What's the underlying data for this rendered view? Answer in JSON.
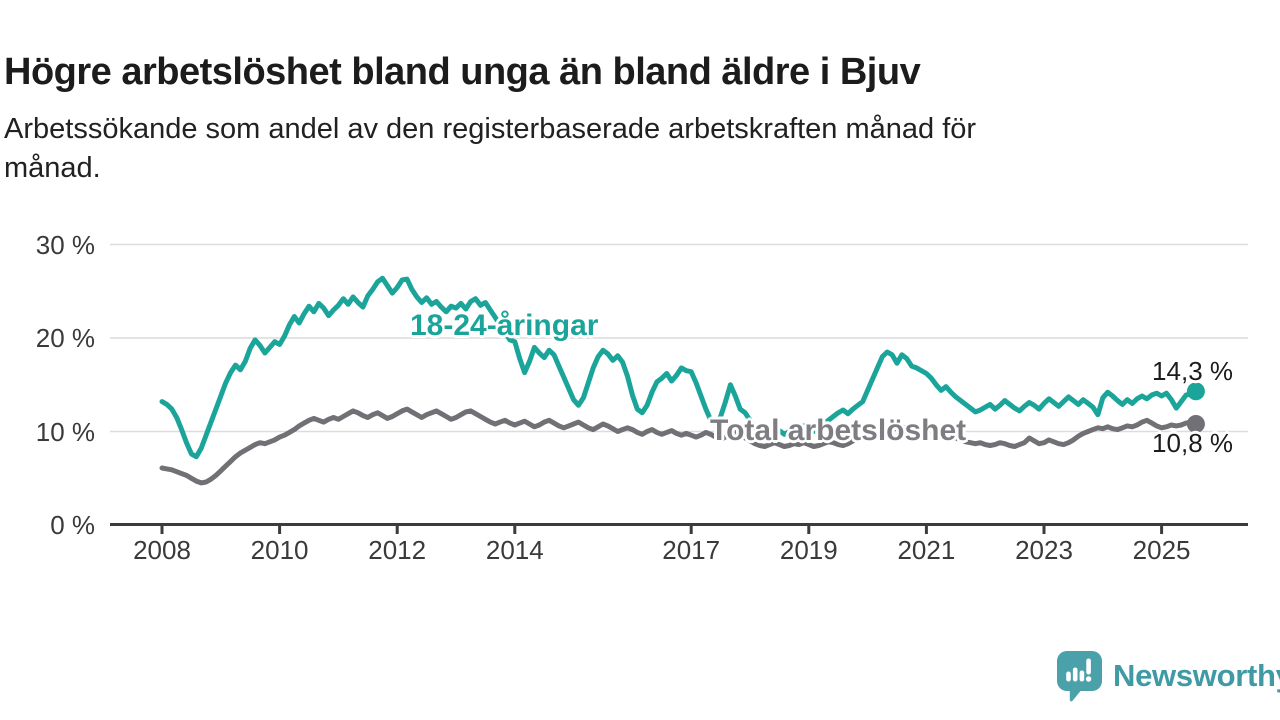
{
  "header": {
    "title": "Högre arbetslöshet bland unga än bland äldre i Bjuv",
    "subtitle_line1": "Arbetssökande som andel av den registerbaserade arbetskraften månad för",
    "subtitle_line2": "månad."
  },
  "chart_data": {
    "type": "line",
    "title": "Högre arbetslöshet bland unga än bland äldre i Bjuv",
    "subtitle": "Arbetssökande som andel av den registerbaserade arbetskraften månad för månad.",
    "x_start_year": 2008,
    "x_step_months": 1,
    "x_end": "2025-08",
    "ylim": [
      0,
      32
    ],
    "grid": true,
    "y_axis": {
      "ticks": [
        {
          "label": "0 %",
          "value": 0
        },
        {
          "label": "10 %",
          "value": 10
        },
        {
          "label": "20 %",
          "value": 20
        },
        {
          "label": "30 %",
          "value": 30
        }
      ]
    },
    "x_axis": {
      "tick_years": [
        2008,
        2010,
        2012,
        2014,
        2017,
        2019,
        2021,
        2023,
        2025
      ]
    },
    "colors": {
      "young_accent": "#1ba59a",
      "total_gray": "#717175",
      "grid": "#dcdcdc",
      "axis": "#3c3c3c"
    },
    "series": [
      {
        "key": "young",
        "name": "18-24-åringar",
        "color": "#1ba59a",
        "end_label": "14,3 %",
        "end_value": 14.3,
        "values": [
          13.2,
          12.9,
          12.4,
          11.5,
          10.2,
          8.8,
          7.6,
          7.3,
          8.2,
          9.6,
          11.0,
          12.4,
          13.8,
          15.2,
          16.3,
          17.1,
          16.6,
          17.5,
          18.9,
          19.8,
          19.2,
          18.4,
          19.0,
          19.6,
          19.3,
          20.2,
          21.4,
          22.3,
          21.6,
          22.6,
          23.4,
          22.8,
          23.7,
          23.2,
          22.4,
          23.0,
          23.5,
          24.2,
          23.6,
          24.4,
          23.8,
          23.3,
          24.5,
          25.2,
          26.0,
          26.4,
          25.6,
          24.8,
          25.4,
          26.2,
          26.3,
          25.2,
          24.4,
          23.8,
          24.3,
          23.6,
          23.9,
          23.3,
          22.8,
          23.4,
          23.2,
          23.7,
          23.1,
          23.9,
          24.2,
          23.5,
          23.8,
          23.0,
          22.2,
          21.4,
          20.6,
          19.8,
          19.6,
          17.8,
          16.3,
          17.5,
          19.0,
          18.4,
          17.9,
          18.7,
          18.2,
          17.0,
          15.8,
          14.6,
          13.4,
          12.8,
          13.6,
          15.2,
          16.8,
          18.0,
          18.7,
          18.3,
          17.6,
          18.1,
          17.4,
          15.9,
          13.9,
          12.4,
          12.0,
          12.8,
          14.2,
          15.3,
          15.7,
          16.2,
          15.4,
          16.0,
          16.8,
          16.5,
          16.4,
          15.2,
          13.8,
          12.4,
          11.2,
          10.9,
          11.6,
          13.2,
          15.0,
          13.8,
          12.4,
          12.0,
          11.2,
          10.4,
          9.8,
          9.5,
          9.9,
          10.3,
          10.1,
          9.7,
          10.0,
          10.4,
          10.2,
          10.6,
          10.3,
          10.0,
          10.4,
          10.8,
          11.2,
          11.6,
          12.0,
          12.3,
          11.9,
          12.4,
          12.8,
          13.2,
          14.4,
          15.6,
          16.8,
          18.0,
          18.5,
          18.2,
          17.3,
          18.2,
          17.8,
          17.0,
          16.8,
          16.5,
          16.2,
          15.7,
          15.0,
          14.4,
          14.8,
          14.2,
          13.7,
          13.3,
          12.9,
          12.5,
          12.1,
          12.3,
          12.6,
          12.9,
          12.4,
          12.8,
          13.3,
          12.9,
          12.5,
          12.2,
          12.7,
          13.1,
          12.8,
          12.4,
          13.0,
          13.5,
          13.1,
          12.7,
          13.2,
          13.7,
          13.3,
          12.9,
          13.4,
          13.0,
          12.6,
          11.8,
          13.6,
          14.2,
          13.8,
          13.3,
          12.9,
          13.4,
          13.0,
          13.5,
          13.8,
          13.5,
          13.9,
          14.1,
          13.8,
          14.1,
          13.4,
          12.5,
          13.2,
          13.9,
          14.0,
          14.3
        ]
      },
      {
        "key": "total",
        "name": "Total arbetslöshet",
        "color": "#717175",
        "end_label": "10,8 %",
        "end_value": 10.8,
        "values": [
          6.1,
          6.0,
          5.9,
          5.7,
          5.5,
          5.3,
          5.0,
          4.7,
          4.5,
          4.6,
          4.9,
          5.3,
          5.8,
          6.3,
          6.8,
          7.3,
          7.7,
          8.0,
          8.3,
          8.6,
          8.8,
          8.7,
          8.9,
          9.1,
          9.4,
          9.6,
          9.9,
          10.2,
          10.6,
          10.9,
          11.2,
          11.4,
          11.2,
          11.0,
          11.3,
          11.5,
          11.3,
          11.6,
          11.9,
          12.2,
          12.0,
          11.7,
          11.5,
          11.8,
          12.0,
          11.7,
          11.4,
          11.6,
          11.9,
          12.2,
          12.4,
          12.1,
          11.8,
          11.5,
          11.8,
          12.0,
          12.2,
          11.9,
          11.6,
          11.3,
          11.5,
          11.8,
          12.1,
          12.2,
          11.9,
          11.6,
          11.3,
          11.0,
          10.8,
          11.0,
          11.2,
          10.9,
          10.7,
          10.9,
          11.1,
          10.8,
          10.5,
          10.7,
          11.0,
          11.2,
          10.9,
          10.6,
          10.4,
          10.6,
          10.8,
          11.0,
          10.7,
          10.4,
          10.2,
          10.5,
          10.8,
          10.6,
          10.3,
          10.0,
          10.2,
          10.4,
          10.2,
          9.9,
          9.7,
          10.0,
          10.2,
          9.9,
          9.7,
          9.9,
          10.1,
          9.8,
          9.6,
          9.8,
          9.6,
          9.4,
          9.6,
          9.9,
          9.7,
          9.4,
          9.2,
          9.4,
          9.7,
          9.9,
          9.6,
          9.3,
          9.0,
          8.7,
          8.5,
          8.4,
          8.6,
          8.8,
          8.6,
          8.4,
          8.5,
          8.7,
          8.6,
          8.8,
          8.6,
          8.4,
          8.5,
          8.7,
          8.9,
          8.8,
          8.6,
          8.5,
          8.7,
          9.0,
          9.2,
          9.4,
          9.7,
          10.0,
          10.3,
          10.5,
          10.4,
          10.2,
          10.4,
          10.5,
          10.3,
          10.2,
          10.4,
          10.3,
          10.2,
          10.0,
          9.8,
          9.6,
          9.4,
          9.5,
          9.3,
          9.1,
          8.9,
          8.8,
          8.7,
          8.8,
          8.6,
          8.5,
          8.6,
          8.8,
          8.7,
          8.5,
          8.4,
          8.6,
          8.8,
          9.3,
          9.0,
          8.7,
          8.8,
          9.1,
          8.9,
          8.7,
          8.6,
          8.8,
          9.1,
          9.5,
          9.8,
          10.0,
          10.2,
          10.4,
          10.3,
          10.5,
          10.3,
          10.2,
          10.4,
          10.6,
          10.5,
          10.7,
          11.0,
          11.2,
          10.9,
          10.6,
          10.4,
          10.5,
          10.7,
          10.6,
          10.7,
          10.9,
          11.0,
          10.8
        ]
      }
    ]
  },
  "footer": {
    "brand": "Newsworthy",
    "logo_icon": "newsworthy-speech-bubble-bar-chart-icon",
    "logo_color": "#4ba1a9"
  }
}
